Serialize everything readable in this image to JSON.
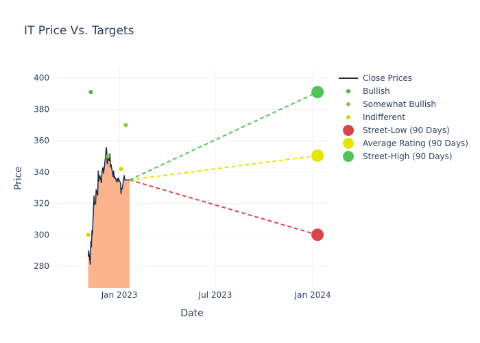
{
  "chart_data": {
    "type": "line",
    "title": "IT Price Vs. Targets",
    "xlabel": "Date",
    "ylabel": "Price",
    "xlim": [
      "2022-09-01",
      "2024-02-01"
    ],
    "ylim": [
      266,
      406
    ],
    "x_ticks": [
      {
        "value": "2023-01-01",
        "label": "Jan 2023"
      },
      {
        "value": "2023-07-01",
        "label": "Jul 2023"
      },
      {
        "value": "2024-01-01",
        "label": "Jan 2024"
      }
    ],
    "y_ticks": [
      280,
      300,
      320,
      340,
      360,
      380,
      400
    ],
    "grid": true,
    "legend_position": "right",
    "close_prices": {
      "name": "Close Prices",
      "color": "#1f2a44",
      "fill_color": "#fbb48e",
      "x": [
        "2022-11-03",
        "2022-11-04",
        "2022-11-07",
        "2022-11-08",
        "2022-11-09",
        "2022-11-10",
        "2022-11-11",
        "2022-11-14",
        "2022-11-15",
        "2022-11-16",
        "2022-11-17",
        "2022-11-18",
        "2022-11-21",
        "2022-11-22",
        "2022-11-23",
        "2022-11-25",
        "2022-11-28",
        "2022-11-29",
        "2022-11-30",
        "2022-12-01",
        "2022-12-02",
        "2022-12-05",
        "2022-12-06",
        "2022-12-07",
        "2022-12-08",
        "2022-12-09",
        "2022-12-12",
        "2022-12-13",
        "2022-12-14",
        "2022-12-15",
        "2022-12-16",
        "2022-12-19",
        "2022-12-20",
        "2022-12-21",
        "2022-12-22",
        "2022-12-23",
        "2022-12-27",
        "2022-12-28",
        "2022-12-29",
        "2022-12-30",
        "2023-01-03",
        "2023-01-04",
        "2023-01-05",
        "2023-01-06",
        "2023-01-09",
        "2023-01-10",
        "2023-01-11",
        "2023-01-12",
        "2023-01-13",
        "2023-01-17",
        "2023-01-18",
        "2023-01-19",
        "2023-01-20"
      ],
      "values": [
        286,
        290,
        281,
        296,
        292,
        303,
        300,
        325,
        319,
        320,
        320,
        329,
        325,
        341,
        334,
        338,
        333,
        340,
        342,
        343,
        339,
        348,
        351,
        356,
        353,
        345,
        350,
        347,
        352,
        343,
        345,
        339,
        337,
        341,
        336,
        337,
        334,
        336,
        334,
        336,
        333,
        326,
        330,
        329,
        336,
        338,
        335,
        335,
        335,
        335,
        335,
        335,
        335
      ]
    },
    "analyst_ratings": [
      {
        "name": "Bullish",
        "color": "#4caf50",
        "points": [
          {
            "x": "2022-11-08",
            "y": 391
          }
        ]
      },
      {
        "name": "Somewhat Bullish",
        "color": "#8bc34a",
        "points": [
          {
            "x": "2023-01-13",
            "y": 370
          },
          {
            "x": "2022-12-10",
            "y": 350
          }
        ]
      },
      {
        "name": "Indifferent",
        "color": "#d4d400",
        "points": [
          {
            "x": "2022-11-03",
            "y": 300
          },
          {
            "x": "2023-01-04",
            "y": 342
          }
        ]
      }
    ],
    "targets": {
      "start": {
        "x": "2023-01-20",
        "y": 335
      },
      "end_x": "2024-01-10",
      "series": [
        {
          "name": "Street-Low (90 Days)",
          "color": "#d9434a",
          "value": 300
        },
        {
          "name": "Average Rating (90 Days)",
          "color": "#e5e500",
          "value": 350.5
        },
        {
          "name": "Street-High (90 Days)",
          "color": "#52c35a",
          "value": 391
        }
      ]
    },
    "legend": [
      "Close Prices",
      "Bullish",
      "Somewhat Bullish",
      "Indifferent",
      "Street-Low (90 Days)",
      "Average Rating (90 Days)",
      "Street-High (90 Days)"
    ]
  }
}
